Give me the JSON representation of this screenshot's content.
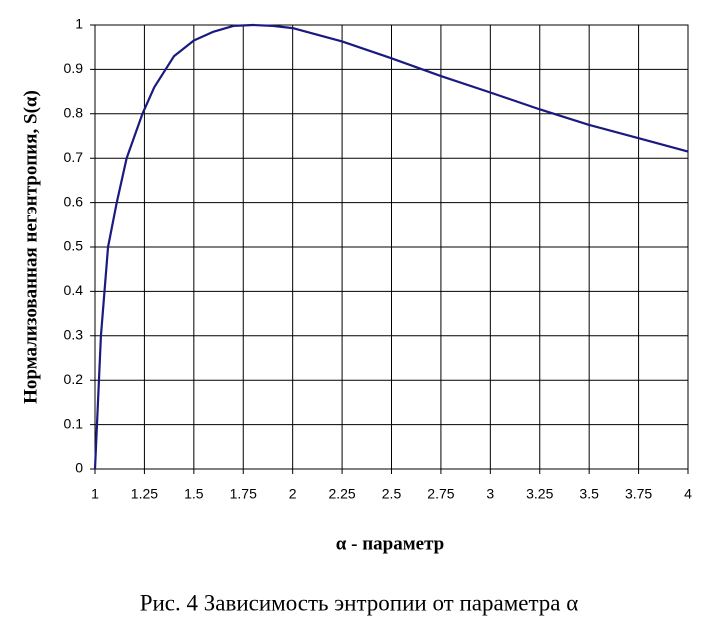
{
  "chart_data": {
    "type": "line",
    "x_label": "α - параметр",
    "y_label": "Нормализованная негэнтропия, S(α)",
    "caption": "Рис. 4 Зависимость энтропии от параметра α",
    "x": [
      1,
      1.01,
      1.03,
      1.066,
      1.11,
      1.16,
      1.24,
      1.3,
      1.4,
      1.5,
      1.6,
      1.7,
      1.8,
      1.9,
      2.0,
      2.25,
      2.5,
      2.75,
      3.0,
      3.25,
      3.5,
      3.75,
      4.0
    ],
    "series": [
      {
        "name": "S(α)",
        "color": "#1a1a80",
        "values": [
          0,
          0.1,
          0.3,
          0.5,
          0.6,
          0.7,
          0.8,
          0.86,
          0.93,
          0.965,
          0.985,
          0.998,
          1.0,
          0.998,
          0.993,
          0.963,
          0.925,
          0.885,
          0.848,
          0.81,
          0.775,
          0.745,
          0.715
        ]
      }
    ],
    "xlim": [
      1,
      4
    ],
    "ylim": [
      0,
      1
    ],
    "xticks": [
      1,
      1.25,
      1.5,
      1.75,
      2,
      2.25,
      2.5,
      2.75,
      3,
      3.25,
      3.5,
      3.75,
      4
    ],
    "yticks": [
      0,
      0.1,
      0.2,
      0.3,
      0.4,
      0.5,
      0.6,
      0.7,
      0.8,
      0.9,
      1
    ],
    "grid": true
  }
}
